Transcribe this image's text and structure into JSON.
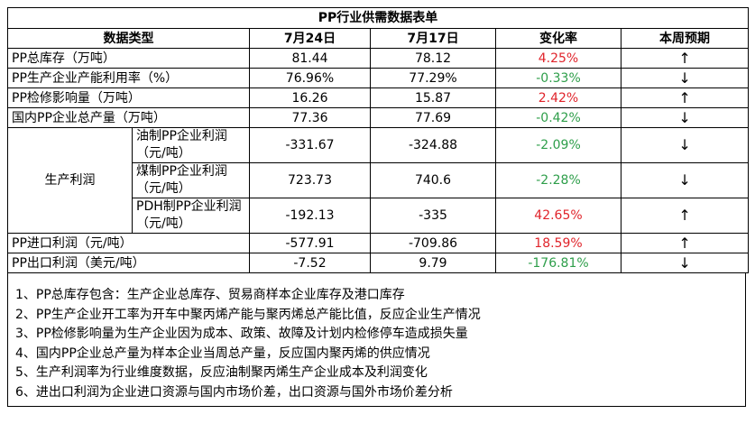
{
  "title": "PP行业供需数据表单",
  "headers": [
    "数据类型",
    "7月24日",
    "7月17日",
    "变化率",
    "本周预期"
  ],
  "rows": [
    {
      "label": "PP总库存（万吨）",
      "cur": "81.44",
      "prev": "78.12",
      "change": "4.25%",
      "dir": "up",
      "arrow": "↑"
    },
    {
      "label": "PP生产企业产能利用率（%）",
      "cur": "76.96%",
      "prev": "77.29%",
      "change": "-0.33%",
      "dir": "down",
      "arrow": "↓"
    },
    {
      "label": "PP检修影响量（万吨）",
      "cur": "16.26",
      "prev": "15.87",
      "change": "2.42%",
      "dir": "up",
      "arrow": "↑"
    },
    {
      "label": "国内PP企业总产量（万吨）",
      "cur": "77.36",
      "prev": "77.69",
      "change": "-0.42%",
      "dir": "down",
      "arrow": "↓"
    }
  ],
  "profit_group": {
    "label": "生产利润",
    "rows": [
      {
        "label": "油制PP企业利润（元/吨）",
        "cur": "-331.67",
        "prev": "-324.88",
        "change": "-2.09%",
        "dir": "down",
        "arrow": "↓"
      },
      {
        "label": "煤制PP企业利润（元/吨）",
        "cur": "723.73",
        "prev": "740.6",
        "change": "-2.28%",
        "dir": "down",
        "arrow": "↓"
      },
      {
        "label": "PDH制PP企业利润（元/吨）",
        "cur": "-192.13",
        "prev": "-335",
        "change": "42.65%",
        "dir": "up",
        "arrow": "↑"
      }
    ]
  },
  "trade_rows": [
    {
      "label": "PP进口利润（元/吨）",
      "cur": "-577.91",
      "prev": "-709.86",
      "change": "18.59%",
      "dir": "up",
      "arrow": "↑"
    },
    {
      "label": "PP出口利润（美元/吨）",
      "cur": "-7.52",
      "prev": "9.79",
      "change": "-176.81%",
      "dir": "down",
      "arrow": "↓"
    }
  ],
  "notes": [
    "1、PP总库存包含：生产企业总库存、贸易商样本企业库存及港口库存",
    "2、PP生产企业开工率为开车中聚丙烯产能与聚丙烯总产能比值，反应企业生产情况",
    "3、PP检修影响量为生产企业因为成本、政策、故障及计划内检修停车造成损失量",
    "4、国内PP企业总产量为样本企业当周总产量，反应国内聚丙烯的供应情况",
    "5、生产利润率为行业维度数据，反应油制聚丙烯生产企业成本及利润变化",
    "6、进出口利润为企业进口资源与国内市场价差，出口资源与国外市场价差分析"
  ],
  "colors": {
    "up": "#e0242b",
    "down": "#2e9e4a"
  }
}
